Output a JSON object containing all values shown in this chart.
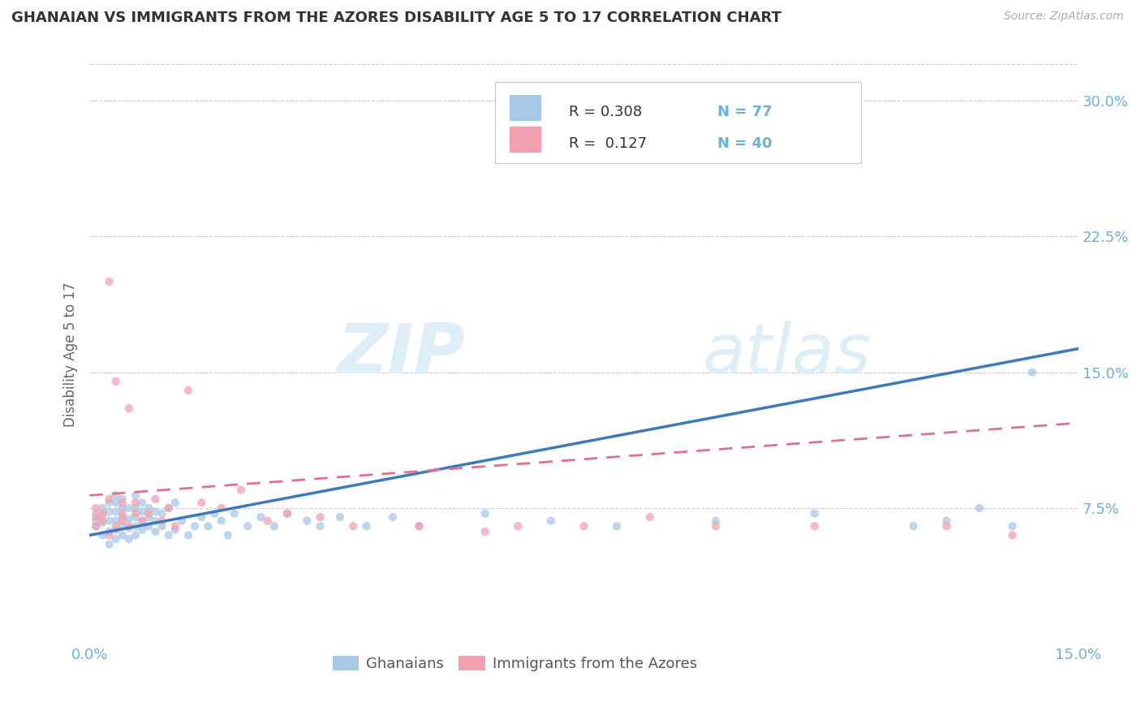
{
  "title": "GHANAIAN VS IMMIGRANTS FROM THE AZORES DISABILITY AGE 5 TO 17 CORRELATION CHART",
  "source_text": "Source: ZipAtlas.com",
  "ylabel": "Disability Age 5 to 17",
  "xlim": [
    0.0,
    0.15
  ],
  "ylim": [
    0.0,
    0.32
  ],
  "ytick_labels": [
    "7.5%",
    "15.0%",
    "22.5%",
    "30.0%"
  ],
  "ytick_values": [
    0.075,
    0.15,
    0.225,
    0.3
  ],
  "color_blue": "#a8c8e8",
  "color_blue_line": "#3a7abf",
  "color_pink": "#f4a0b0",
  "color_pink_line": "#e07090",
  "color_title": "#333333",
  "color_axis_label": "#666666",
  "color_tick": "#6ab0d8",
  "color_grid": "#cccccc",
  "watermark_color": "#ddeeff",
  "background_color": "#ffffff",
  "blue_line_x0": 0.0,
  "blue_line_y0": 0.06,
  "blue_line_x1": 0.15,
  "blue_line_y1": 0.163,
  "pink_line_x0": 0.0,
  "pink_line_y0": 0.082,
  "pink_line_x1": 0.15,
  "pink_line_y1": 0.122,
  "ghanaian_x": [
    0.001,
    0.001,
    0.001,
    0.002,
    0.002,
    0.002,
    0.002,
    0.003,
    0.003,
    0.003,
    0.003,
    0.003,
    0.004,
    0.004,
    0.004,
    0.004,
    0.004,
    0.004,
    0.005,
    0.005,
    0.005,
    0.005,
    0.005,
    0.006,
    0.006,
    0.006,
    0.006,
    0.007,
    0.007,
    0.007,
    0.007,
    0.007,
    0.008,
    0.008,
    0.008,
    0.008,
    0.009,
    0.009,
    0.009,
    0.01,
    0.01,
    0.01,
    0.011,
    0.011,
    0.012,
    0.012,
    0.013,
    0.013,
    0.014,
    0.015,
    0.016,
    0.017,
    0.018,
    0.019,
    0.02,
    0.021,
    0.022,
    0.024,
    0.026,
    0.028,
    0.03,
    0.033,
    0.035,
    0.038,
    0.042,
    0.046,
    0.05,
    0.06,
    0.07,
    0.08,
    0.095,
    0.11,
    0.125,
    0.13,
    0.135,
    0.14,
    0.143
  ],
  "ghanaian_y": [
    0.065,
    0.068,
    0.072,
    0.06,
    0.067,
    0.071,
    0.075,
    0.055,
    0.062,
    0.068,
    0.073,
    0.078,
    0.058,
    0.063,
    0.068,
    0.073,
    0.078,
    0.082,
    0.06,
    0.065,
    0.07,
    0.075,
    0.08,
    0.058,
    0.064,
    0.069,
    0.075,
    0.06,
    0.065,
    0.07,
    0.075,
    0.082,
    0.063,
    0.068,
    0.073,
    0.078,
    0.065,
    0.07,
    0.075,
    0.062,
    0.068,
    0.073,
    0.065,
    0.072,
    0.06,
    0.075,
    0.063,
    0.078,
    0.068,
    0.06,
    0.065,
    0.07,
    0.065,
    0.072,
    0.068,
    0.06,
    0.072,
    0.065,
    0.07,
    0.065,
    0.072,
    0.068,
    0.065,
    0.07,
    0.065,
    0.07,
    0.065,
    0.072,
    0.068,
    0.065,
    0.068,
    0.072,
    0.065,
    0.068,
    0.075,
    0.065,
    0.15
  ],
  "azores_x": [
    0.001,
    0.001,
    0.001,
    0.002,
    0.002,
    0.003,
    0.003,
    0.003,
    0.004,
    0.004,
    0.005,
    0.005,
    0.005,
    0.006,
    0.006,
    0.007,
    0.007,
    0.008,
    0.009,
    0.01,
    0.011,
    0.012,
    0.013,
    0.015,
    0.017,
    0.02,
    0.023,
    0.027,
    0.03,
    0.035,
    0.04,
    0.05,
    0.06,
    0.065,
    0.075,
    0.085,
    0.095,
    0.11,
    0.13,
    0.14
  ],
  "azores_y": [
    0.065,
    0.07,
    0.075,
    0.068,
    0.072,
    0.06,
    0.2,
    0.08,
    0.065,
    0.145,
    0.068,
    0.072,
    0.078,
    0.065,
    0.13,
    0.072,
    0.078,
    0.068,
    0.072,
    0.08,
    0.068,
    0.075,
    0.065,
    0.14,
    0.078,
    0.075,
    0.085,
    0.068,
    0.072,
    0.07,
    0.065,
    0.065,
    0.062,
    0.065,
    0.065,
    0.07,
    0.065,
    0.065,
    0.065,
    0.06
  ]
}
